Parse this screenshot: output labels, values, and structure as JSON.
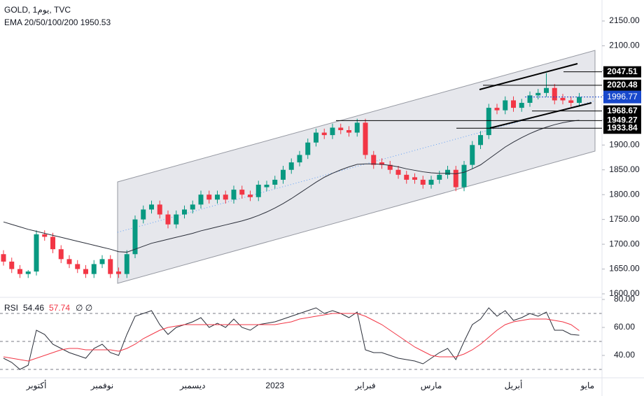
{
  "chart_data": [
    {
      "type": "candlestick",
      "title": "GOLD, 1يوم, TVC",
      "subtitle": "EMA 20/50/100/200  1950.53",
      "categories": [
        null,
        null,
        null,
        null,
        "أكتوبر",
        null,
        null,
        null,
        null,
        null,
        null,
        null,
        "نوفمبر",
        null,
        null,
        null,
        null,
        null,
        null,
        null,
        null,
        null,
        null,
        "ديسمبر",
        null,
        null,
        null,
        null,
        null,
        null,
        null,
        null,
        null,
        "2023",
        null,
        null,
        null,
        null,
        null,
        null,
        null,
        null,
        null,
        null,
        "فبراير",
        null,
        null,
        null,
        null,
        null,
        null,
        null,
        "مارس",
        null,
        null,
        null,
        null,
        null,
        null,
        null,
        null,
        null,
        "أبريل",
        null,
        null,
        null,
        null,
        null,
        null,
        null,
        null,
        "مايو"
      ],
      "open": [
        1680,
        1665,
        1650,
        1640,
        1645,
        1720,
        1715,
        1690,
        1670,
        1660,
        1650,
        1640,
        1660,
        1670,
        1645,
        1640,
        1680,
        1750,
        1770,
        1780,
        1760,
        1740,
        1760,
        1770,
        1780,
        1800,
        1790,
        1800,
        1790,
        1810,
        1800,
        1795,
        1815,
        1820,
        1830,
        1850,
        1865,
        1880,
        1905,
        1925,
        1920,
        1935,
        1930,
        1925,
        1945,
        1880,
        1865,
        1860,
        1850,
        1840,
        1835,
        1830,
        1820,
        1830,
        1840,
        1850,
        1815,
        1860,
        1900,
        1920,
        1975,
        1970,
        1990,
        1975,
        1985,
        2000,
        2005,
        2015,
        1995,
        1990,
        1985,
        null
      ],
      "high": [
        1688,
        1673,
        1658,
        1648,
        1728,
        1728,
        1723,
        1698,
        1678,
        1668,
        1658,
        1668,
        1678,
        1678,
        1653,
        1688,
        1758,
        1778,
        1788,
        1788,
        1768,
        1768,
        1778,
        1788,
        1808,
        1808,
        1808,
        1808,
        1818,
        1818,
        1808,
        1828,
        1828,
        1838,
        1858,
        1873,
        1888,
        1913,
        1933,
        1933,
        1943,
        1943,
        1938,
        1953,
        1953,
        1888,
        1873,
        1868,
        1858,
        1848,
        1843,
        1838,
        1838,
        1848,
        1858,
        1858,
        1868,
        1908,
        1928,
        1983,
        1983,
        1998,
        1998,
        1993,
        2008,
        2013,
        2045,
        2023,
        2003,
        1998,
        2005,
        null
      ],
      "low": [
        1657,
        1642,
        1632,
        1632,
        1637,
        1707,
        1682,
        1662,
        1652,
        1642,
        1632,
        1632,
        1652,
        1632,
        1632,
        1632,
        1672,
        1742,
        1762,
        1752,
        1732,
        1732,
        1752,
        1762,
        1772,
        1782,
        1782,
        1782,
        1782,
        1792,
        1787,
        1787,
        1807,
        1812,
        1822,
        1842,
        1857,
        1872,
        1897,
        1912,
        1912,
        1922,
        1917,
        1917,
        1872,
        1852,
        1852,
        1842,
        1832,
        1822,
        1822,
        1812,
        1812,
        1822,
        1832,
        1807,
        1807,
        1852,
        1892,
        1912,
        1962,
        1962,
        1967,
        1967,
        1977,
        1992,
        1997,
        1982,
        1982,
        1977,
        1977,
        null
      ],
      "close": [
        1665,
        1650,
        1640,
        1645,
        1720,
        1715,
        1690,
        1670,
        1660,
        1650,
        1640,
        1660,
        1670,
        1640,
        1640,
        1680,
        1750,
        1770,
        1780,
        1760,
        1740,
        1760,
        1770,
        1780,
        1800,
        1790,
        1800,
        1790,
        1810,
        1800,
        1795,
        1820,
        1820,
        1830,
        1850,
        1865,
        1880,
        1905,
        1925,
        1920,
        1935,
        1930,
        1925,
        1945,
        1880,
        1860,
        1860,
        1850,
        1840,
        1830,
        1830,
        1820,
        1830,
        1840,
        1850,
        1815,
        1860,
        1900,
        1920,
        1975,
        1970,
        1990,
        1975,
        1985,
        2000,
        2005,
        2015,
        1990,
        1990,
        1985,
        1997,
        null
      ],
      "up_color": "#089981",
      "down_color": "#f23645",
      "series": [
        {
          "name": "EMA",
          "color": "#2a2e39",
          "values": [
            1745,
            1740,
            1735,
            1730,
            1726,
            1722,
            1718,
            1714,
            1710,
            1706,
            1702,
            1698,
            1694,
            1690,
            1685,
            1684,
            1690,
            1696,
            1702,
            1706,
            1710,
            1714,
            1718,
            1722,
            1727,
            1731,
            1735,
            1739,
            1743,
            1747,
            1752,
            1758,
            1765,
            1773,
            1782,
            1792,
            1803,
            1814,
            1825,
            1835,
            1843,
            1850,
            1856,
            1861,
            1862,
            1862,
            1861,
            1859,
            1856,
            1852,
            1849,
            1846,
            1844,
            1843,
            1843,
            1842,
            1845,
            1852,
            1860,
            1872,
            1884,
            1896,
            1906,
            1915,
            1923,
            1930,
            1936,
            1941,
            1945,
            1948,
            1950,
            null
          ]
        }
      ],
      "levels": [
        2047.51,
        2020.48,
        1968.67,
        1949.27,
        1933.84
      ],
      "last_price": 1996.77,
      "last_price_color": "#1848cc",
      "ylim": [
        1600,
        2150
      ],
      "yticks": [
        {
          "value": 1600,
          "label": "1600.00"
        },
        {
          "value": 1650,
          "label": "1650.00"
        },
        {
          "value": 1700,
          "label": "1700.00"
        },
        {
          "value": 1750,
          "label": "1750.00"
        },
        {
          "value": 1800,
          "label": "1800.00"
        },
        {
          "value": 1850,
          "label": "1850.00"
        },
        {
          "value": 1900,
          "label": "1900.00"
        },
        {
          "value": 1950,
          "label": "1950.00"
        },
        {
          "value": 2000,
          "label": "2000.00"
        },
        {
          "value": 2050,
          "label": "2050.00"
        },
        {
          "value": 2100,
          "label": "2100.00"
        },
        {
          "value": 2150,
          "label": "2150.00"
        }
      ]
    },
    {
      "type": "line",
      "title": "RSI",
      "subtitle": "54.46",
      "subtitle2": "57.74",
      "subtitle3": "∅ ∅",
      "series": [
        {
          "name": "RSI",
          "color": "#2a2e39",
          "values": [
            38,
            35,
            30,
            33,
            58,
            55,
            48,
            45,
            42,
            40,
            38,
            45,
            48,
            42,
            40,
            55,
            68,
            70,
            72,
            62,
            55,
            60,
            62,
            64,
            67,
            60,
            63,
            60,
            66,
            60,
            58,
            62,
            63,
            64,
            66,
            68,
            70,
            72,
            74,
            70,
            72,
            70,
            67,
            71,
            44,
            42,
            42,
            40,
            38,
            37,
            36,
            34,
            38,
            42,
            45,
            37,
            50,
            62,
            66,
            74,
            68,
            72,
            65,
            67,
            70,
            68,
            71,
            58,
            58,
            55,
            54.46,
            null
          ]
        },
        {
          "name": "MA",
          "color": "#f23645",
          "values": [
            39,
            38,
            37,
            36,
            38,
            40,
            42,
            44,
            45,
            45,
            44,
            44,
            44,
            44,
            43,
            45,
            48,
            52,
            55,
            58,
            60,
            61,
            62,
            62,
            62,
            62,
            62,
            62,
            62,
            62,
            62,
            62,
            62,
            62,
            63,
            64,
            66,
            67,
            68,
            69,
            70,
            70,
            70,
            70,
            68,
            65,
            62,
            58,
            54,
            50,
            46,
            43,
            40,
            39,
            39,
            39,
            41,
            44,
            48,
            53,
            58,
            62,
            64,
            65,
            66,
            66,
            66,
            65,
            64,
            62,
            57.74,
            null
          ]
        }
      ],
      "hlines": [
        70,
        50,
        30
      ],
      "ylim": [
        25,
        80
      ],
      "yticks": [
        {
          "value": 40,
          "label": "40.00"
        },
        {
          "value": 60,
          "label": "60.00"
        },
        {
          "value": 80,
          "label": "80.00"
        }
      ]
    }
  ]
}
